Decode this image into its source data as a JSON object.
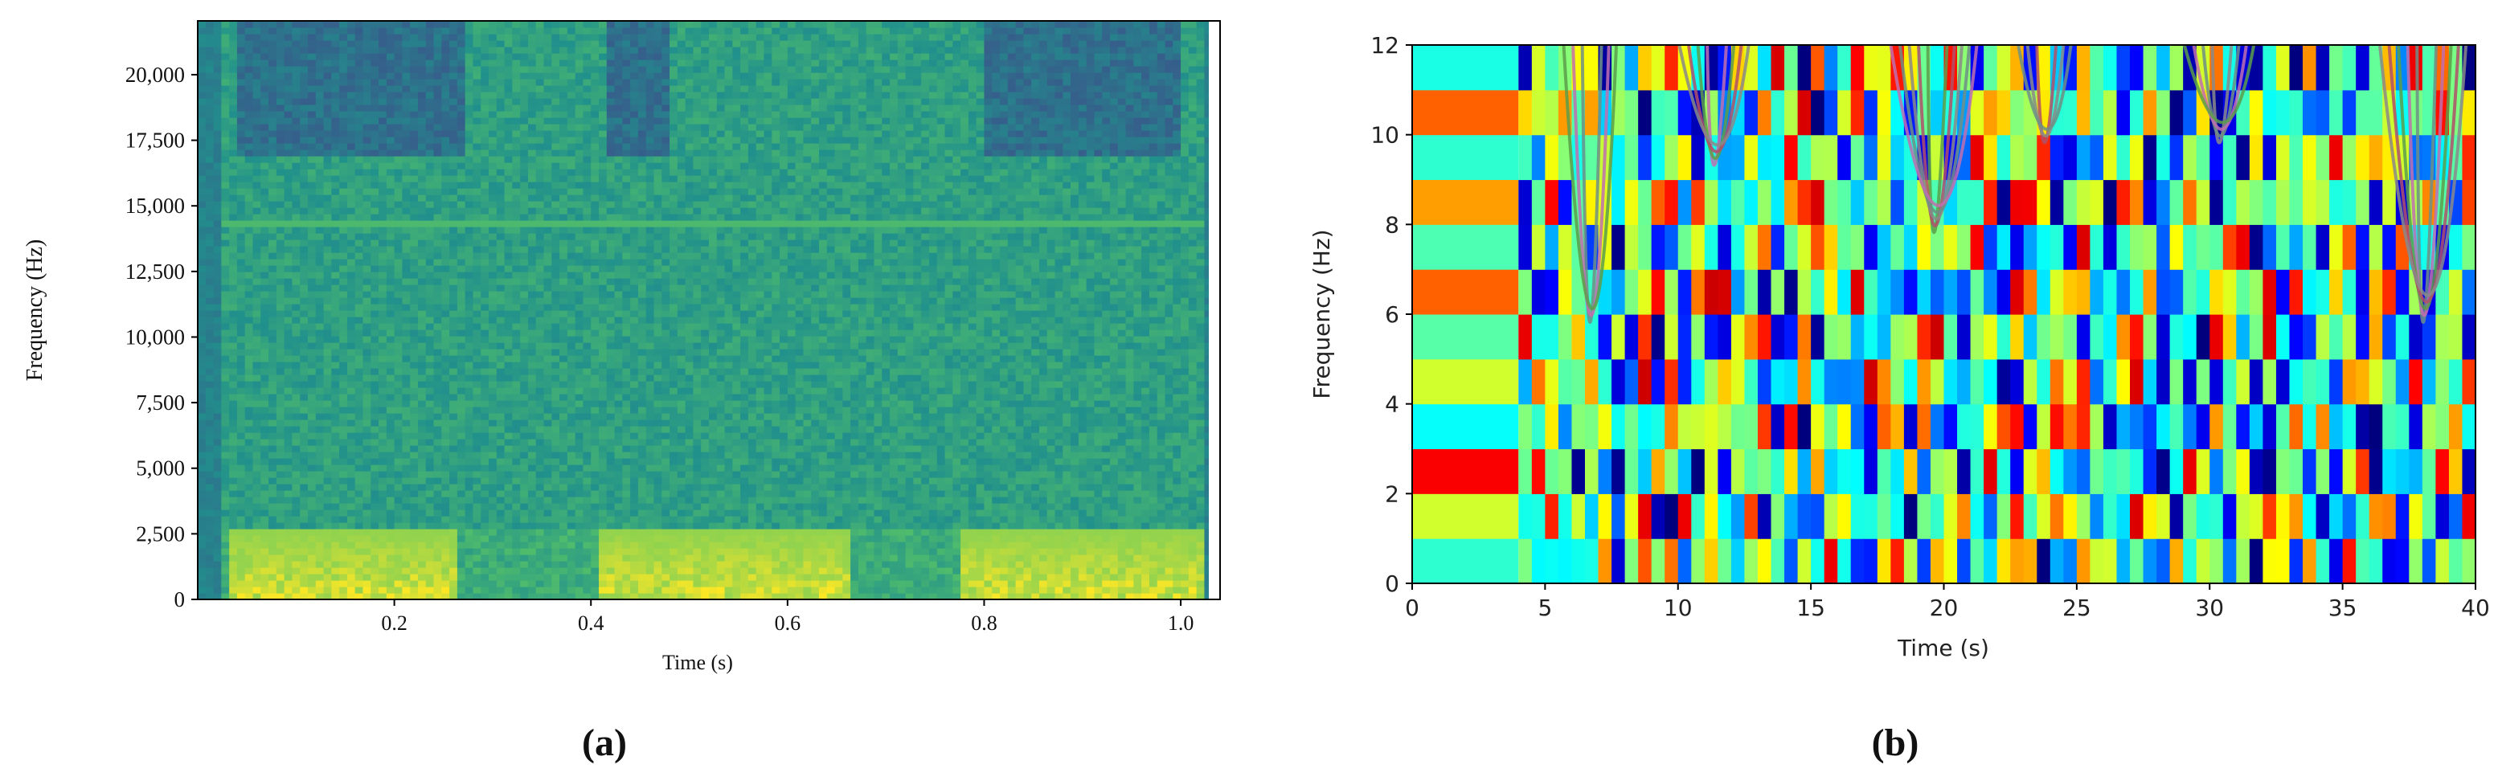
{
  "chart_data": [
    {
      "type": "heatmap",
      "panel_label": "(a)",
      "xlabel": "Time (s)",
      "ylabel": "Frequency (Hz)",
      "xlim": [
        0,
        1.04
      ],
      "ylim": [
        0,
        22050
      ],
      "xticks": [
        0.2,
        0.4,
        0.6,
        0.8,
        1.0
      ],
      "xtick_labels": [
        "0.2",
        "0.4",
        "0.6",
        "0.8",
        "1.0"
      ],
      "yticks": [
        0,
        2500,
        5000,
        7500,
        10000,
        12500,
        15000,
        17500,
        20000
      ],
      "ytick_labels": [
        "0",
        "2,500",
        "5,000",
        "7,500",
        "10,000",
        "12,500",
        "15,000",
        "17,500",
        "20,000"
      ],
      "colormap": "viridis",
      "grid": false,
      "dark_high_frequency_regions": [
        {
          "t": [
            0.04,
            0.27
          ],
          "f": [
            16800,
            22050
          ]
        },
        {
          "t": [
            0.42,
            0.48
          ],
          "f": [
            16800,
            22050
          ]
        },
        {
          "t": [
            0.8,
            1.0
          ],
          "f": [
            16800,
            22050
          ]
        }
      ],
      "high_energy_low_frequency_regions": [
        {
          "t": [
            0.03,
            0.26
          ],
          "f": [
            0,
            2700
          ]
        },
        {
          "t": [
            0.41,
            0.66
          ],
          "f": [
            0,
            2700
          ]
        },
        {
          "t": [
            0.78,
            1.02
          ],
          "f": [
            0,
            2700
          ]
        }
      ],
      "tonal_line_hz": 14300
    },
    {
      "type": "heatmap",
      "panel_label": "(b)",
      "xlabel": "Time (s)",
      "ylabel": "Frequency (Hz)",
      "xlim": [
        0,
        40
      ],
      "ylim": [
        0,
        12
      ],
      "xticks": [
        0,
        5,
        10,
        15,
        20,
        25,
        30,
        35,
        40
      ],
      "xtick_labels": [
        "0",
        "5",
        "10",
        "15",
        "20",
        "25",
        "30",
        "35",
        "40"
      ],
      "yticks": [
        0,
        2,
        4,
        6,
        8,
        10,
        12
      ],
      "ytick_labels": [
        "0",
        "2",
        "4",
        "6",
        "8",
        "10",
        "12"
      ],
      "colormap": "jet",
      "grid": false,
      "time_bins_s": 0.5,
      "freq_bins_hz": 1,
      "first_segment_s": [
        0,
        4
      ],
      "first_segment_levels_by_frequency_bin": [
        0.42,
        0.58,
        0.88,
        0.38,
        0.58,
        0.46,
        0.78,
        0.45,
        0.72,
        0.42,
        0.78,
        0.4
      ],
      "traced_curve_times_s": [
        6.8,
        11.5,
        19.8,
        23.9,
        30.5,
        38.2
      ]
    }
  ]
}
